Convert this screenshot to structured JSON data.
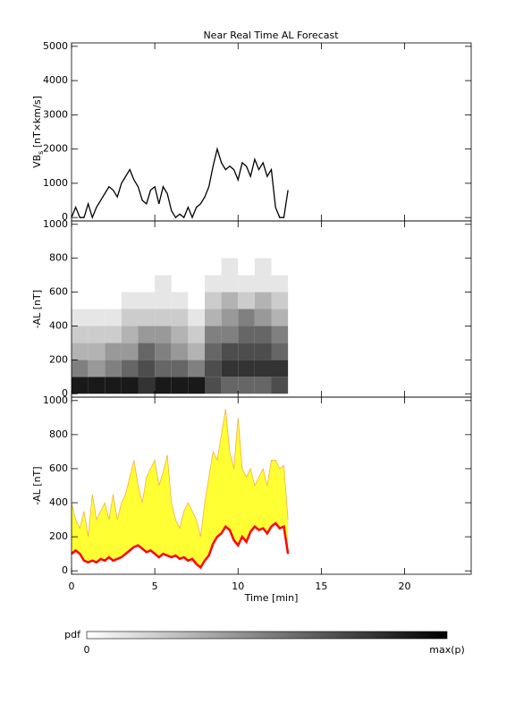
{
  "chart_data": [
    {
      "type": "line",
      "title": "Near Real Time AL Forecast",
      "ylabel": [
        "VB",
        "s",
        " [nT×km/s]"
      ],
      "x": [
        0,
        0.25,
        0.5,
        0.75,
        1,
        1.25,
        1.5,
        1.75,
        2,
        2.25,
        2.5,
        2.75,
        3,
        3.25,
        3.5,
        3.75,
        4,
        4.25,
        4.5,
        4.75,
        5,
        5.25,
        5.5,
        5.75,
        6,
        6.25,
        6.5,
        6.75,
        7,
        7.25,
        7.5,
        7.75,
        8,
        8.25,
        8.5,
        8.75,
        9,
        9.25,
        9.5,
        9.75,
        10,
        10.25,
        10.5,
        10.75,
        11,
        11.25,
        11.5,
        11.75,
        12,
        12.25,
        12.5,
        12.75,
        13
      ],
      "values": [
        0,
        300,
        0,
        0,
        400,
        0,
        300,
        500,
        700,
        900,
        800,
        600,
        1000,
        1200,
        1400,
        1100,
        900,
        500,
        400,
        800,
        900,
        400,
        900,
        700,
        200,
        0,
        100,
        0,
        300,
        0,
        300,
        400,
        600,
        900,
        1500,
        2000,
        1600,
        1400,
        1500,
        1400,
        1100,
        1600,
        1500,
        1200,
        1700,
        1400,
        1600,
        1200,
        1400,
        300,
        0,
        0,
        800
      ],
      "color": "#000000",
      "xlim": [
        0,
        24
      ],
      "ylim": [
        -100,
        5100
      ],
      "yticks": [
        0,
        1000,
        2000,
        3000,
        4000,
        5000
      ]
    },
    {
      "type": "heatmap",
      "ylabel": "-AL [nT]",
      "bins": [
        0,
        1,
        2,
        3,
        4,
        5,
        6,
        7,
        8,
        9,
        10,
        11,
        12,
        13
      ],
      "ybins": [
        0,
        100,
        200,
        300,
        400,
        500,
        600,
        700,
        800
      ],
      "z": [
        [
          0.9,
          0.5,
          0.3,
          0.2,
          0.1,
          0,
          0,
          0
        ],
        [
          0.9,
          0.4,
          0.3,
          0.2,
          0.1,
          0,
          0,
          0
        ],
        [
          0.9,
          0.5,
          0.4,
          0.2,
          0.1,
          0,
          0,
          0
        ],
        [
          0.9,
          0.6,
          0.4,
          0.3,
          0.2,
          0.1,
          0,
          0
        ],
        [
          0.8,
          0.7,
          0.6,
          0.4,
          0.2,
          0.1,
          0,
          0
        ],
        [
          0.9,
          0.6,
          0.5,
          0.4,
          0.2,
          0.1,
          0.1,
          0
        ],
        [
          0.9,
          0.6,
          0.4,
          0.3,
          0.2,
          0.1,
          0,
          0
        ],
        [
          0.9,
          0.5,
          0.3,
          0.2,
          0.1,
          0,
          0,
          0
        ],
        [
          0.7,
          0.7,
          0.6,
          0.5,
          0.3,
          0.2,
          0.1,
          0
        ],
        [
          0.6,
          0.8,
          0.7,
          0.5,
          0.4,
          0.3,
          0.1,
          0.1
        ],
        [
          0.6,
          0.8,
          0.7,
          0.6,
          0.5,
          0.2,
          0.1,
          0
        ],
        [
          0.6,
          0.8,
          0.7,
          0.6,
          0.4,
          0.3,
          0.1,
          0.1
        ],
        [
          0.7,
          0.8,
          0.6,
          0.5,
          0.3,
          0.2,
          0.1,
          0
        ]
      ],
      "xlim": [
        0,
        24
      ],
      "ylim": [
        -20,
        1020
      ],
      "yticks": [
        0,
        200,
        400,
        600,
        800,
        1000
      ]
    },
    {
      "type": "area",
      "ylabel": "-AL [nT]",
      "xlabel": "Time [min]",
      "x": [
        0,
        0.25,
        0.5,
        0.75,
        1,
        1.25,
        1.5,
        1.75,
        2,
        2.25,
        2.5,
        2.75,
        3,
        3.25,
        3.5,
        3.75,
        4,
        4.25,
        4.5,
        4.75,
        5,
        5.25,
        5.5,
        5.75,
        6,
        6.25,
        6.5,
        6.75,
        7,
        7.25,
        7.5,
        7.75,
        8,
        8.25,
        8.5,
        8.75,
        9,
        9.25,
        9.5,
        9.75,
        10,
        10.25,
        10.5,
        10.75,
        11,
        11.25,
        11.5,
        11.75,
        12,
        12.25,
        12.5,
        12.75,
        13
      ],
      "series": [
        {
          "color": "#ffff33",
          "values": [
            400,
            300,
            250,
            350,
            200,
            450,
            300,
            350,
            400,
            300,
            450,
            300,
            400,
            450,
            550,
            650,
            500,
            400,
            550,
            600,
            650,
            500,
            580,
            680,
            400,
            300,
            250,
            350,
            400,
            350,
            300,
            200,
            400,
            550,
            700,
            650,
            800,
            950,
            700,
            600,
            900,
            600,
            550,
            600,
            500,
            550,
            600,
            500,
            650,
            650,
            600,
            620,
            300
          ]
        },
        {
          "color": "#ff0000",
          "values": [
            100,
            120,
            100,
            60,
            50,
            60,
            50,
            70,
            60,
            80,
            60,
            70,
            80,
            100,
            120,
            140,
            150,
            130,
            110,
            120,
            100,
            80,
            100,
            90,
            80,
            90,
            70,
            80,
            60,
            70,
            40,
            20,
            60,
            90,
            160,
            200,
            220,
            260,
            240,
            180,
            150,
            200,
            170,
            230,
            260,
            240,
            250,
            220,
            260,
            280,
            250,
            260,
            100
          ]
        }
      ],
      "xlim": [
        0,
        24
      ],
      "ylim": [
        -20,
        1020
      ],
      "yticks": [
        0,
        200,
        400,
        600,
        800,
        1000
      ],
      "xticks": [
        0,
        5,
        10,
        15,
        20
      ]
    }
  ],
  "colorbar": {
    "label": "pdf",
    "min_label": "0",
    "max_label": "max(p)"
  }
}
